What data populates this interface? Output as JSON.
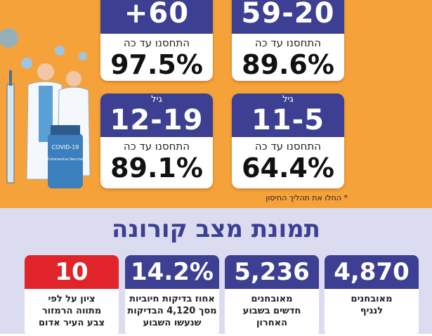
{
  "age_cards": [
    {
      "age": "+60",
      "caption": "התחסנו עד כה",
      "value": "97.5%"
    },
    {
      "age": "59-20",
      "caption": "התחסנו עד כה",
      "value": "89.6%"
    },
    {
      "label": "גיל",
      "age": "12-19",
      "caption": "התחסנו עד כה",
      "value": "89.1%"
    },
    {
      "label": "גיל",
      "age": "11-5",
      "caption": "התחסנו עד כה",
      "value": "64.4%"
    }
  ],
  "footnote": "* החלו את תהליך החיסון",
  "section_title": "תמונת מצב קורונה",
  "stats": [
    {
      "value": "4,870",
      "lines": [
        "מאובחנים",
        "לנגיף"
      ]
    },
    {
      "value": "5,236",
      "lines": [
        "מאובחנים",
        "חדשים בשבוע",
        "האחרון"
      ]
    },
    {
      "value": "14.2%",
      "lines": [
        "אחוז בדיקות חיוביות",
        "מסך 4,120 הבדיקות",
        "שנעשו השבוע"
      ]
    },
    {
      "value": "10",
      "lines": [
        "ציון על לפי",
        "מתווה הרמזור",
        "צבע העיר אדום"
      ]
    }
  ],
  "illustration": {
    "vial_label": "COVID-19",
    "vial_text": "Coronavirus Vaccine"
  }
}
